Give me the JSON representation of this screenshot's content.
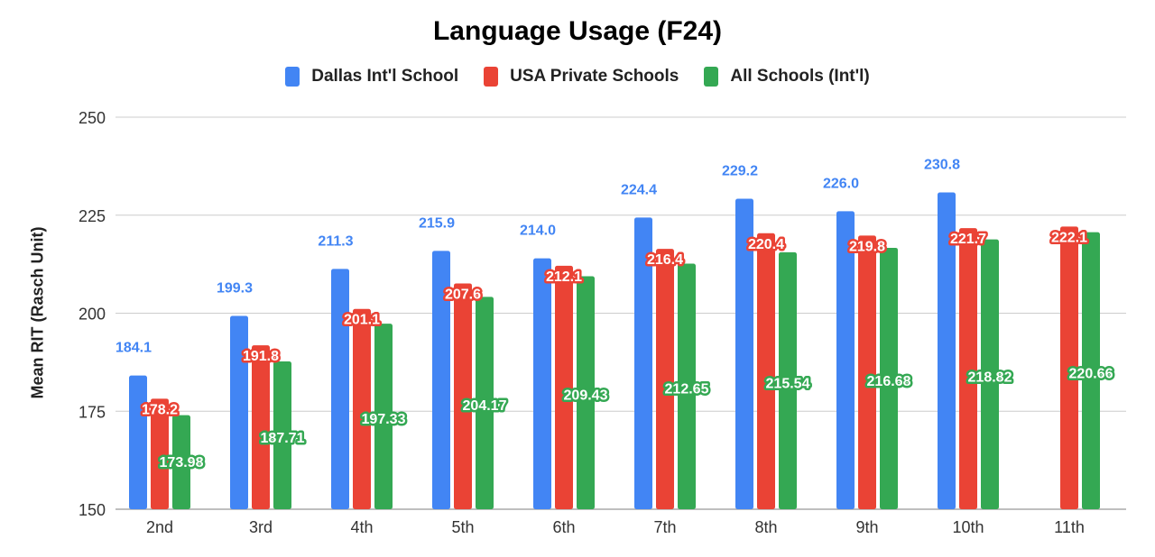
{
  "title": "Language Usage (F24)",
  "legend": [
    {
      "label": "Dallas Int'l School",
      "color": "#4285f4"
    },
    {
      "label": "USA Private Schools",
      "color": "#ea4335"
    },
    {
      "label": "All Schools (Int'l)",
      "color": "#34a853"
    }
  ],
  "yaxis": {
    "label": "Mean RIT (Rasch Unit)",
    "ticks": [
      "150",
      "175",
      "200",
      "225",
      "250"
    ]
  },
  "chart_data": {
    "type": "bar",
    "title": "Language Usage (F24)",
    "xlabel": "",
    "ylabel": "Mean RIT (Rasch Unit)",
    "ylim": [
      150,
      250
    ],
    "yticks": [
      150,
      175,
      200,
      225,
      250
    ],
    "grid": true,
    "legend_position": "top",
    "categories": [
      "2nd",
      "3rd",
      "4th",
      "5th",
      "6th",
      "7th",
      "8th",
      "9th",
      "10th",
      "11th"
    ],
    "series": [
      {
        "name": "Dallas Int'l School",
        "color": "#4285f4",
        "values": [
          184.1,
          199.3,
          211.3,
          215.9,
          214.0,
          224.4,
          229.2,
          226.0,
          230.8,
          null
        ],
        "labels": [
          "184.1",
          "199.3",
          "211.3",
          "215.9",
          "214.0",
          "224.4",
          "229.2",
          "226.0",
          "230.8",
          ""
        ]
      },
      {
        "name": "USA Private Schools",
        "color": "#ea4335",
        "values": [
          178.2,
          191.8,
          201.1,
          207.6,
          212.1,
          216.4,
          220.4,
          219.8,
          221.7,
          222.1
        ],
        "labels": [
          "178.2",
          "191.8",
          "201.1",
          "207.6",
          "212.1",
          "216.4",
          "220.4",
          "219.8",
          "221.7",
          "222.1"
        ]
      },
      {
        "name": "All Schools (Int'l)",
        "color": "#34a853",
        "values": [
          173.98,
          187.71,
          197.33,
          204.17,
          209.43,
          212.65,
          215.54,
          216.68,
          218.82,
          220.66
        ],
        "labels": [
          "173.98",
          "187.71",
          "197.33",
          "204.17",
          "209.43",
          "212.65",
          "215.54",
          "216.68",
          "218.82",
          "220.66"
        ]
      }
    ]
  }
}
